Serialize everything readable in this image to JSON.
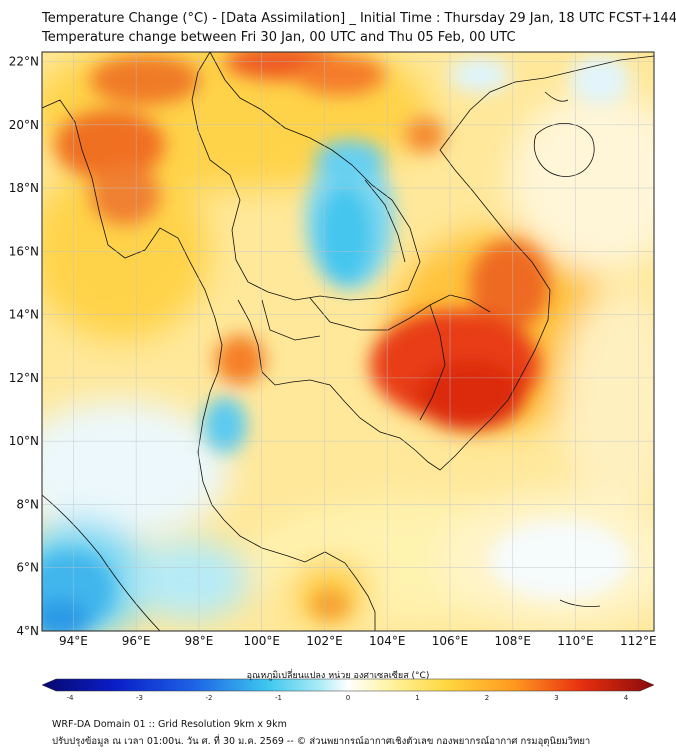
{
  "header": {
    "title": "Temperature Change (°C) - [Data Assimilation] _ Initial Time : Thursday 29 Jan, 18 UTC FCST+144",
    "subtitle": "Temperature change between Fri 30 Jan, 00 UTC and Thu 05 Feb, 00 UTC"
  },
  "map": {
    "lat_labels": [
      "22°N",
      "20°N",
      "18°N",
      "16°N",
      "14°N",
      "12°N",
      "10°N",
      "8°N",
      "6°N",
      "4°N"
    ],
    "lon_labels": [
      "94°E",
      "96°E",
      "98°E",
      "100°E",
      "102°E",
      "104°E",
      "106°E",
      "108°E",
      "110°E",
      "112°E"
    ],
    "lat_range": [
      4,
      22.3
    ],
    "lon_range": [
      93,
      112.5
    ],
    "grid": true,
    "field_description_colors": {
      "cold": "#3ec8ee",
      "neutral": "#ffffff",
      "warm": "#ffd740",
      "hot": "#e83010"
    }
  },
  "colorbar": {
    "title": "อุณหภูมิเปลี่ยนแปลง หน่วย องศาเซลเซียส (°C)",
    "range": [
      -4,
      4
    ],
    "ticks": [
      "-4",
      "-3",
      "-2",
      "-1",
      "0",
      "1",
      "2",
      "3",
      "4"
    ],
    "colors": [
      "#08086e",
      "#0a1ec8",
      "#1e64e6",
      "#3ec8ee",
      "#a6eaf6",
      "#ffffff",
      "#fff3a0",
      "#ffd740",
      "#ff9a20",
      "#e83010",
      "#8a0a0a"
    ]
  },
  "footer": {
    "line1": "WRF-DA Domain 01 :: Grid Resolution 9km x 9km",
    "line2": "ปรับปรุงข้อมูล ณ เวลา 01:00น. วัน ศ. ที่ 30 ม.ค. 2569 -- © ส่วนพยากรณ์อากาศเชิงตัวเลข กองพยากรณ์อากาศ กรมอุตุนิยมวิทยา"
  }
}
